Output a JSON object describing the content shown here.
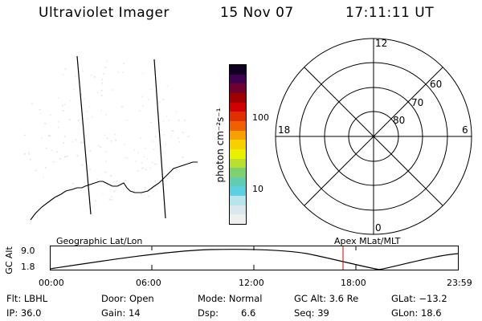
{
  "header": {
    "instrument": "Ultraviolet Imager",
    "date": "15 Nov 07",
    "time": "17:11:11 UT"
  },
  "colorbar": {
    "label": "photon cm⁻²s⁻¹",
    "ticks": [
      "100",
      "10"
    ],
    "scale": "log",
    "colors": [
      "#eef0f0",
      "#d8e8ec",
      "#b8e4ec",
      "#5cd0e0",
      "#60ccb0",
      "#80d070",
      "#b8e030",
      "#e8f000",
      "#f8d000",
      "#f8a000",
      "#f06000",
      "#e03000",
      "#d00000",
      "#a00000",
      "#700030",
      "#400050",
      "#100020"
    ]
  },
  "polar_plot": {
    "hour_labels": {
      "top": "12",
      "left": "18",
      "right": "6",
      "bottom": "0"
    },
    "lat_labels": [
      "60",
      "70",
      "80"
    ]
  },
  "timeline": {
    "left_title": "Geographic Lat/Lon",
    "right_title": "Apex  MLat/MLT",
    "y_label": "GC Alt",
    "y_ticks": [
      "9.0",
      "1.8"
    ],
    "x_ticks": [
      "00:00",
      "06:00",
      "12:00",
      "18:00",
      "23:59"
    ],
    "marker_time": "17:11:11"
  },
  "info": {
    "filter": "Flt: LBHL",
    "ip": "IP: 36.0",
    "door": "Door: Open",
    "gain": "Gain: 14",
    "mode": "Mode: Normal",
    "dsp": "Dsp:",
    "dsp_value": "6.6",
    "gc_alt": "GC Alt: 3.6 Re",
    "seq": "Seq: 39",
    "glat": "GLat: −13.2",
    "glon": "GLon: 18.6"
  }
}
